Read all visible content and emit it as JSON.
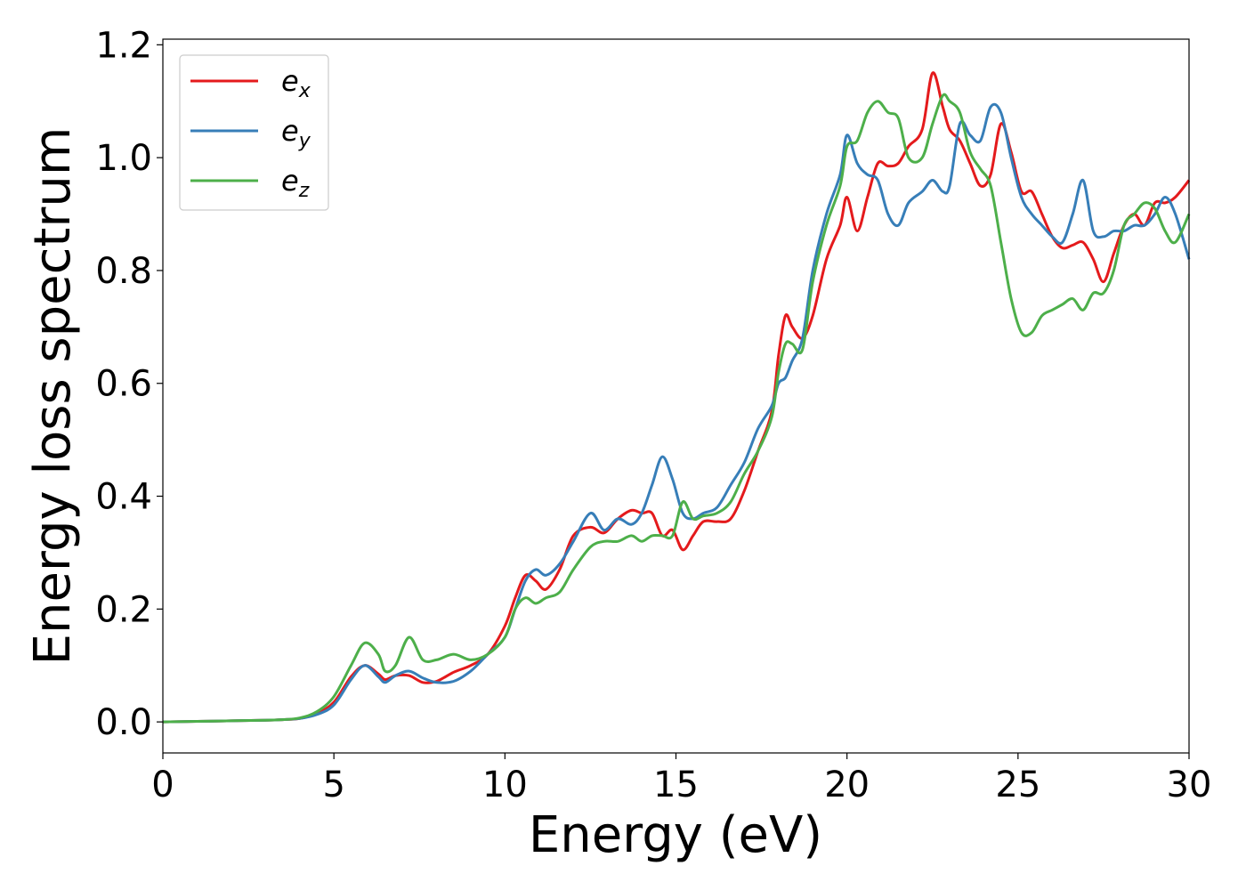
{
  "chart_data": {
    "type": "line",
    "title": "",
    "xlabel": "Energy (eV)",
    "ylabel": "Energy loss spectrum",
    "xlim": [
      0,
      30
    ],
    "ylim": [
      -0.055,
      1.21
    ],
    "xticks": [
      0,
      5,
      10,
      15,
      20,
      25,
      30
    ],
    "xtick_labels": [
      "0",
      "5",
      "10",
      "15",
      "20",
      "25",
      "30"
    ],
    "yticks": [
      0.0,
      0.2,
      0.4,
      0.6,
      0.8,
      1.0,
      1.2
    ],
    "ytick_labels": [
      "0.0",
      "0.2",
      "0.4",
      "0.6",
      "0.8",
      "1.0",
      "1.2"
    ],
    "grid": false,
    "legend_position": "top-left",
    "series": [
      {
        "name": "e",
        "subscript": "x",
        "color": "#e41a1c",
        "x": [
          0,
          1,
          2,
          3,
          3.5,
          4,
          4.5,
          5,
          5.5,
          5.9,
          6.3,
          6.5,
          6.8,
          7.2,
          7.6,
          8.0,
          8.5,
          9.0,
          9.5,
          10.0,
          10.3,
          10.6,
          10.9,
          11.2,
          11.6,
          12.0,
          12.5,
          12.9,
          13.3,
          13.7,
          14.0,
          14.3,
          14.6,
          14.9,
          15.2,
          15.5,
          15.8,
          16.2,
          16.6,
          17.0,
          17.4,
          17.8,
          18.0,
          18.2,
          18.4,
          18.7,
          19.0,
          19.4,
          19.8,
          20.0,
          20.3,
          20.6,
          20.9,
          21.2,
          21.5,
          21.8,
          22.2,
          22.5,
          22.8,
          23.0,
          23.3,
          23.6,
          23.9,
          24.2,
          24.5,
          24.8,
          25.1,
          25.4,
          25.7,
          26.0,
          26.3,
          26.6,
          26.9,
          27.2,
          27.5,
          27.8,
          28.1,
          28.4,
          28.7,
          29.0,
          29.3,
          29.6,
          30.0
        ],
        "y": [
          0.0,
          0.001,
          0.002,
          0.003,
          0.004,
          0.006,
          0.015,
          0.035,
          0.08,
          0.1,
          0.085,
          0.075,
          0.082,
          0.082,
          0.07,
          0.072,
          0.088,
          0.1,
          0.12,
          0.17,
          0.22,
          0.26,
          0.25,
          0.235,
          0.27,
          0.33,
          0.345,
          0.335,
          0.36,
          0.375,
          0.37,
          0.37,
          0.33,
          0.34,
          0.305,
          0.33,
          0.355,
          0.355,
          0.36,
          0.41,
          0.48,
          0.55,
          0.65,
          0.72,
          0.7,
          0.68,
          0.72,
          0.82,
          0.88,
          0.93,
          0.87,
          0.93,
          0.99,
          0.985,
          0.99,
          1.02,
          1.05,
          1.15,
          1.09,
          1.05,
          1.03,
          0.99,
          0.95,
          0.97,
          1.06,
          1.01,
          0.94,
          0.94,
          0.9,
          0.86,
          0.84,
          0.845,
          0.85,
          0.82,
          0.78,
          0.83,
          0.88,
          0.9,
          0.88,
          0.92,
          0.92,
          0.93,
          0.96
        ]
      },
      {
        "name": "e",
        "subscript": "y",
        "color": "#377eb8",
        "x": [
          0,
          1,
          2,
          3,
          3.5,
          4,
          4.5,
          5,
          5.5,
          5.9,
          6.3,
          6.5,
          6.8,
          7.2,
          7.6,
          8.0,
          8.5,
          9.0,
          9.5,
          10.0,
          10.3,
          10.6,
          10.9,
          11.2,
          11.6,
          12.0,
          12.5,
          12.9,
          13.3,
          13.7,
          14.0,
          14.3,
          14.6,
          14.9,
          15.2,
          15.5,
          15.8,
          16.2,
          16.6,
          17.0,
          17.4,
          17.8,
          18.0,
          18.2,
          18.4,
          18.7,
          19.0,
          19.4,
          19.8,
          20.0,
          20.3,
          20.6,
          20.9,
          21.2,
          21.5,
          21.8,
          22.2,
          22.5,
          22.8,
          23.0,
          23.3,
          23.6,
          23.9,
          24.2,
          24.5,
          24.8,
          25.1,
          25.4,
          25.7,
          26.0,
          26.3,
          26.6,
          26.9,
          27.2,
          27.5,
          27.8,
          28.1,
          28.4,
          28.7,
          29.0,
          29.3,
          29.6,
          30.0
        ],
        "y": [
          0.0,
          0.001,
          0.002,
          0.003,
          0.004,
          0.006,
          0.013,
          0.03,
          0.075,
          0.1,
          0.08,
          0.07,
          0.082,
          0.09,
          0.078,
          0.07,
          0.072,
          0.09,
          0.12,
          0.15,
          0.2,
          0.25,
          0.27,
          0.26,
          0.28,
          0.32,
          0.37,
          0.34,
          0.36,
          0.35,
          0.37,
          0.42,
          0.47,
          0.43,
          0.37,
          0.36,
          0.37,
          0.38,
          0.42,
          0.46,
          0.52,
          0.56,
          0.6,
          0.61,
          0.64,
          0.68,
          0.8,
          0.9,
          0.97,
          1.04,
          0.99,
          0.97,
          0.96,
          0.9,
          0.88,
          0.92,
          0.94,
          0.96,
          0.94,
          0.95,
          1.06,
          1.04,
          1.03,
          1.09,
          1.08,
          1.0,
          0.93,
          0.9,
          0.88,
          0.86,
          0.85,
          0.9,
          0.96,
          0.87,
          0.86,
          0.87,
          0.87,
          0.88,
          0.88,
          0.9,
          0.93,
          0.9,
          0.82
        ]
      },
      {
        "name": "e",
        "subscript": "z",
        "color": "#4daf4a",
        "x": [
          0,
          1,
          2,
          3,
          3.5,
          4,
          4.5,
          5,
          5.5,
          5.9,
          6.3,
          6.5,
          6.8,
          7.2,
          7.6,
          8.0,
          8.5,
          9.0,
          9.5,
          10.0,
          10.3,
          10.6,
          10.9,
          11.2,
          11.6,
          12.0,
          12.5,
          12.9,
          13.3,
          13.7,
          14.0,
          14.3,
          14.6,
          14.9,
          15.2,
          15.5,
          15.8,
          16.2,
          16.6,
          17.0,
          17.4,
          17.8,
          18.0,
          18.2,
          18.4,
          18.7,
          19.0,
          19.4,
          19.8,
          20.0,
          20.3,
          20.6,
          20.9,
          21.2,
          21.5,
          21.8,
          22.2,
          22.5,
          22.8,
          23.0,
          23.3,
          23.6,
          23.9,
          24.2,
          24.5,
          24.8,
          25.1,
          25.4,
          25.7,
          26.0,
          26.3,
          26.6,
          26.9,
          27.2,
          27.5,
          27.8,
          28.1,
          28.4,
          28.7,
          29.0,
          29.3,
          29.6,
          30.0
        ],
        "y": [
          0.0,
          0.001,
          0.002,
          0.003,
          0.004,
          0.007,
          0.018,
          0.045,
          0.1,
          0.14,
          0.12,
          0.09,
          0.1,
          0.15,
          0.11,
          0.11,
          0.12,
          0.11,
          0.12,
          0.15,
          0.2,
          0.22,
          0.21,
          0.22,
          0.23,
          0.27,
          0.31,
          0.32,
          0.32,
          0.33,
          0.32,
          0.33,
          0.33,
          0.33,
          0.39,
          0.36,
          0.365,
          0.37,
          0.39,
          0.44,
          0.48,
          0.54,
          0.62,
          0.67,
          0.67,
          0.66,
          0.78,
          0.88,
          0.95,
          1.02,
          1.03,
          1.08,
          1.1,
          1.08,
          1.07,
          1.0,
          1.0,
          1.06,
          1.11,
          1.1,
          1.08,
          1.01,
          0.98,
          0.95,
          0.85,
          0.75,
          0.69,
          0.69,
          0.72,
          0.73,
          0.74,
          0.75,
          0.73,
          0.76,
          0.76,
          0.8,
          0.88,
          0.9,
          0.92,
          0.91,
          0.87,
          0.85,
          0.9
        ]
      }
    ]
  }
}
